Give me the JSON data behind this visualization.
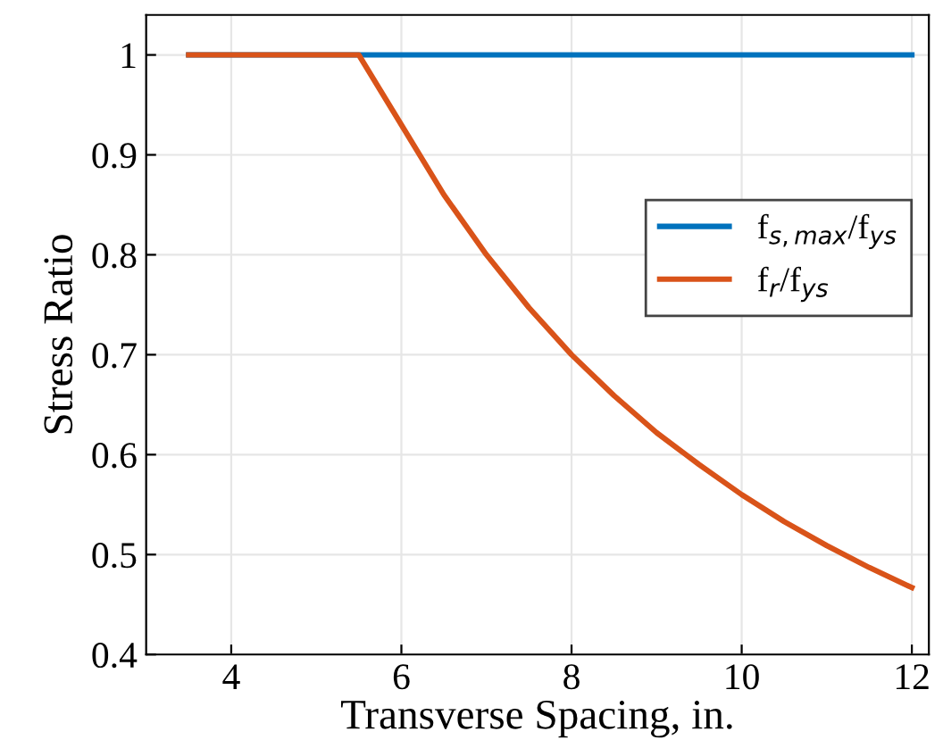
{
  "chart_data": {
    "type": "line",
    "xlabel": "Transverse Spacing, in.",
    "ylabel": "Stress Ratio",
    "xlim": [
      3,
      12.2
    ],
    "ylim": [
      0.4,
      1.04
    ],
    "xticks": [
      4,
      6,
      8,
      10,
      12
    ],
    "yticks": [
      0.4,
      0.5,
      0.6,
      0.7,
      0.8,
      0.9,
      1
    ],
    "grid": true,
    "legend": "right",
    "series": [
      {
        "name": "f$_{s,max}$/f$_{ys}$",
        "color": "#0072bd",
        "x": [
          3.5,
          12
        ],
        "values": [
          1,
          1
        ]
      },
      {
        "name": "f$_{r}$/f$_{ys}$",
        "color": "#d95319",
        "x": [
          3.5,
          5.5,
          6,
          6.5,
          7,
          7.5,
          8,
          8.5,
          9,
          9.5,
          10,
          10.5,
          11,
          11.5,
          12
        ],
        "values": [
          1,
          1,
          0.93,
          0.86,
          0.8,
          0.747,
          0.7,
          0.659,
          0.622,
          0.59,
          0.56,
          0.533,
          0.509,
          0.487,
          0.467
        ]
      }
    ]
  }
}
